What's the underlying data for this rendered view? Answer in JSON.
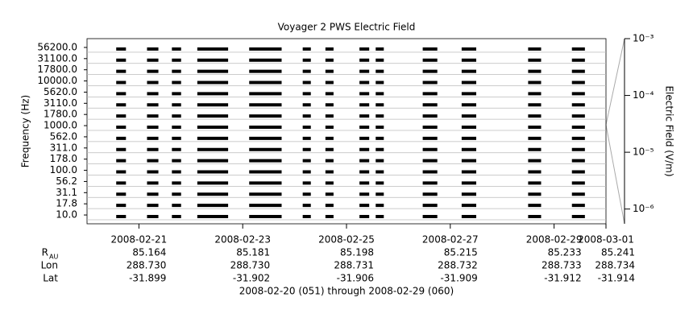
{
  "chart_data": {
    "type": "timeline",
    "title": "Voyager 2 PWS Electric Field",
    "y_label": "Frequency (Hz)",
    "y2_label": "Electric Field (V/m)",
    "x_label": "2008-02-20 (051) through 2008-02-29 (060)",
    "categories": [
      "56200.0",
      "31100.0",
      "17800.0",
      "10000.0",
      "5620.0",
      "3110.0",
      "1780.0",
      "1000.0",
      "562.0",
      "311.0",
      "178.0",
      "100.0",
      "56.2",
      "31.1",
      "17.8",
      "10.0"
    ],
    "xlim": [
      "2008-02-20",
      "2008-03-01"
    ],
    "xticks": [
      "2008-02-21",
      "2008-02-23",
      "2008-02-25",
      "2008-02-27",
      "2008-02-29",
      "2008-03-01"
    ],
    "y2lim": [
      5.5e-07,
      0.001
    ],
    "y2ticks": [
      {
        "value": 0.001,
        "label": "10⁻³"
      },
      {
        "value": 0.0001,
        "label": "10⁻⁴"
      },
      {
        "value": 1e-05,
        "label": "10⁻⁵"
      },
      {
        "value": 1e-06,
        "label": "10⁻⁶"
      }
    ],
    "y2_log": true,
    "grid": true,
    "color": "#000000",
    "intervals": [
      {
        "start": "2008-02-20T13:30",
        "end": "2008-02-20T18:00"
      },
      {
        "start": "2008-02-21T03:45",
        "end": "2008-02-21T09:00"
      },
      {
        "start": "2008-02-21T15:15",
        "end": "2008-02-21T19:30"
      },
      {
        "start": "2008-02-22T03:00",
        "end": "2008-02-22T17:15"
      },
      {
        "start": "2008-02-23T03:00",
        "end": "2008-02-23T18:00"
      },
      {
        "start": "2008-02-24T03:45",
        "end": "2008-02-24T07:30"
      },
      {
        "start": "2008-02-24T14:15",
        "end": "2008-02-24T18:00"
      },
      {
        "start": "2008-02-25T06:00",
        "end": "2008-02-25T10:30"
      },
      {
        "start": "2008-02-25T13:30",
        "end": "2008-02-25T17:15"
      },
      {
        "start": "2008-02-26T11:15",
        "end": "2008-02-26T18:00"
      },
      {
        "start": "2008-02-27T05:15",
        "end": "2008-02-27T12:00"
      },
      {
        "start": "2008-02-28T12:00",
        "end": "2008-02-28T18:00"
      },
      {
        "start": "2008-02-29T08:15",
        "end": "2008-02-29T14:15"
      }
    ],
    "ephemeris": [
      {
        "label": "R",
        "sub": "AU",
        "values": [
          "85.164",
          "85.181",
          "85.198",
          "85.215",
          "85.233",
          "85.241"
        ]
      },
      {
        "label": "Lon",
        "values": [
          "288.730",
          "288.730",
          "288.731",
          "288.732",
          "288.733",
          "288.734"
        ]
      },
      {
        "label": "Lat",
        "values": [
          "-31.899",
          "-31.902",
          "-31.906",
          "-31.909",
          "-31.912",
          "-31.914"
        ]
      }
    ]
  }
}
